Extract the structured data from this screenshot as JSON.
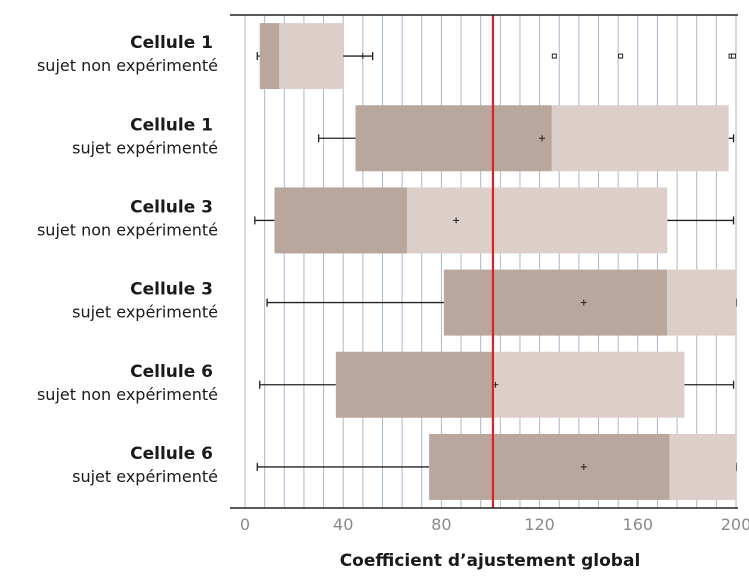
{
  "chart_data": {
    "type": "boxplot",
    "orientation": "horizontal",
    "xlabel": "Coefficient d’ajustement global",
    "ylabel": "",
    "xlim": [
      0,
      200
    ],
    "xticks": [
      "0",
      "40",
      "80",
      "120",
      "160",
      "200"
    ],
    "grid": "vertical lines every 8 units",
    "reference_line": {
      "value": 101,
      "color": "#e02020"
    },
    "colors": {
      "lower_box": "#b9a79d",
      "upper_box": "#dccfca",
      "grid": "#a9b8cc"
    },
    "categories": [
      {
        "title": "Cellule 1",
        "subtitle": "sujet non expérimenté",
        "min": 5,
        "q1": 6,
        "median": 14,
        "q3": 40,
        "max": 52,
        "mean": 48,
        "outliers": [
          126,
          153,
          198,
          199
        ]
      },
      {
        "title": "Cellule 1",
        "subtitle": "sujet expérimenté",
        "min": 30,
        "q1": 45,
        "median": 125,
        "q3": 197,
        "max": 199,
        "mean": 121,
        "outliers": []
      },
      {
        "title": "Cellule 3",
        "subtitle": "sujet non expérimenté",
        "min": 4,
        "q1": 12,
        "median": 66,
        "q3": 172,
        "max": 199,
        "mean": 86,
        "outliers": []
      },
      {
        "title": "Cellule 3",
        "subtitle": "sujet expérimenté",
        "min": 9,
        "q1": 81,
        "median": 172,
        "q3": 200,
        "max": 200,
        "mean": 138,
        "outliers": []
      },
      {
        "title": "Cellule 6",
        "subtitle": "sujet non expérimenté",
        "min": 6,
        "q1": 37,
        "median": 101,
        "q3": 179,
        "max": 199,
        "mean": 102,
        "outliers": []
      },
      {
        "title": "Cellule 6",
        "subtitle": "sujet expérimenté",
        "min": 5,
        "q1": 75,
        "median": 173,
        "q3": 200,
        "max": 200,
        "mean": 138,
        "outliers": []
      }
    ]
  }
}
